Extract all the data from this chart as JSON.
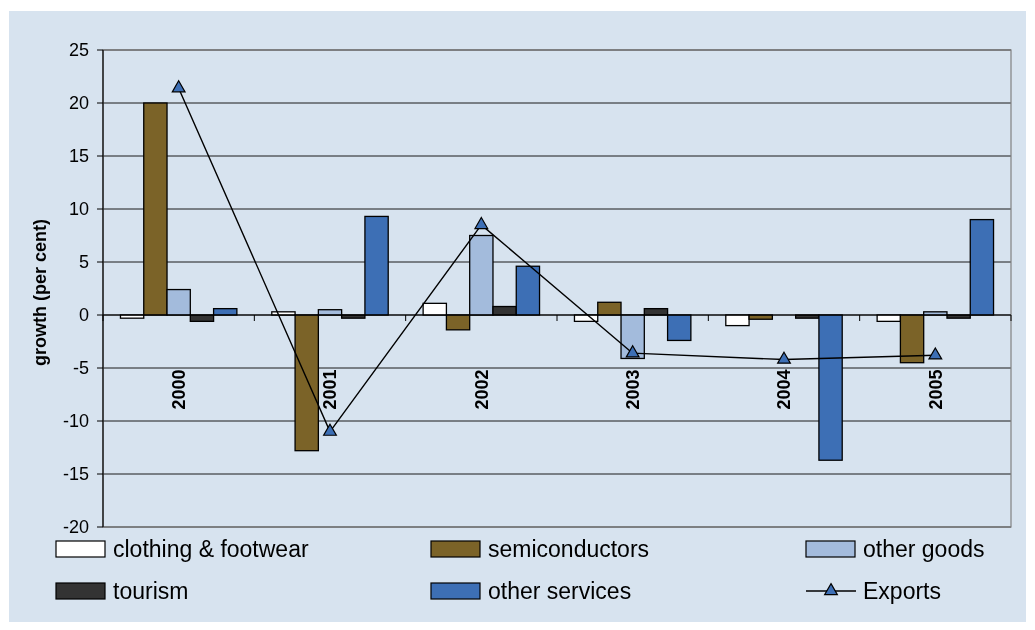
{
  "chart_data": {
    "type": "bar",
    "ylabel": "growth (per cent)",
    "categories": [
      "2000",
      "2001",
      "2002",
      "2003",
      "2004",
      "2005"
    ],
    "series": [
      {
        "name": "clothing & footwear",
        "color": "#ffffff",
        "values": [
          -0.3,
          0.3,
          1.1,
          -0.6,
          -1.0,
          -0.6
        ]
      },
      {
        "name": "semiconductors",
        "color": "#7b6328",
        "values": [
          20.0,
          -12.8,
          -1.4,
          1.2,
          -0.4,
          -4.5
        ]
      },
      {
        "name": "other goods",
        "color": "#a3bbdc",
        "values": [
          2.4,
          0.5,
          7.5,
          -4.1,
          0,
          0.3
        ]
      },
      {
        "name": "tourism",
        "color": "#333333",
        "values": [
          -0.6,
          -0.3,
          0.8,
          0.6,
          -0.3,
          -0.3
        ]
      },
      {
        "name": "other services",
        "color": "#3d6fb5",
        "values": [
          0.6,
          9.3,
          4.6,
          -2.4,
          -13.7,
          9.0
        ]
      },
      {
        "name": "Exports",
        "type": "line",
        "color": "#000000",
        "marker": "triangle",
        "values": [
          21.4,
          -11.0,
          8.5,
          -3.6,
          -4.2,
          -3.8
        ]
      }
    ],
    "ylim": [
      -20,
      25
    ],
    "yticks": [
      -20,
      -15,
      -10,
      -5,
      0,
      5,
      10,
      15,
      20,
      25
    ],
    "grid": "y",
    "legend": "bottom"
  }
}
